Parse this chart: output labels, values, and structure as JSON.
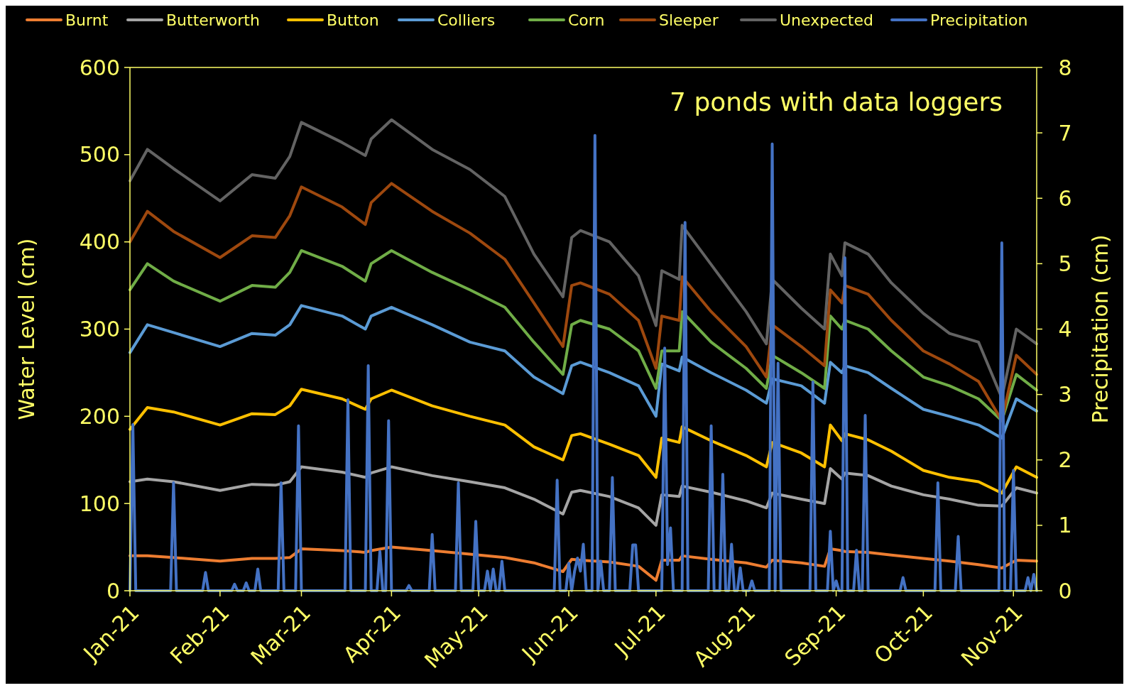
{
  "chart_data": {
    "type": "line",
    "ylabel": "Water Level (cm)",
    "y2label": "Precipitation (cm)",
    "annotations": [
      "7 ponds with data loggers"
    ],
    "legend": "top",
    "grid": false,
    "marker": "none",
    "line_style": "solid",
    "xlim": [
      "2021-01-01",
      "2021-11-09"
    ],
    "xticks": [
      {
        "value": "2021-01-01",
        "label": "Jan-21"
      },
      {
        "value": "2021-02-01",
        "label": "Feb-21"
      },
      {
        "value": "2021-03-01",
        "label": "Mar-21"
      },
      {
        "value": "2021-04-01",
        "label": "Apr-21"
      },
      {
        "value": "2021-05-01",
        "label": "May-21"
      },
      {
        "value": "2021-06-01",
        "label": "Jun-21"
      },
      {
        "value": "2021-07-01",
        "label": "Jul-21"
      },
      {
        "value": "2021-08-01",
        "label": "Aug-21"
      },
      {
        "value": "2021-09-01",
        "label": "Sep-21"
      },
      {
        "value": "2021-10-01",
        "label": "Oct-21"
      },
      {
        "value": "2021-11-01",
        "label": "Nov-21"
      }
    ],
    "ylim": [
      0,
      600
    ],
    "yticks": [
      0,
      100,
      200,
      300,
      400,
      500,
      600
    ],
    "y2lim": [
      0,
      8
    ],
    "y2ticks": [
      0,
      1,
      2,
      3,
      4,
      5,
      6,
      7,
      8
    ],
    "x": [
      "2021-01-01",
      "2021-01-07",
      "2021-01-16",
      "2021-02-01",
      "2021-02-12",
      "2021-02-20",
      "2021-02-25",
      "2021-03-01",
      "2021-03-15",
      "2021-03-23",
      "2021-03-25",
      "2021-04-01",
      "2021-04-15",
      "2021-04-28",
      "2021-05-10",
      "2021-05-20",
      "2021-05-30",
      "2021-06-02",
      "2021-06-05",
      "2021-06-15",
      "2021-06-25",
      "2021-07-01",
      "2021-07-03",
      "2021-07-09",
      "2021-07-10",
      "2021-07-20",
      "2021-08-01",
      "2021-08-08",
      "2021-08-10",
      "2021-08-20",
      "2021-08-28",
      "2021-08-30",
      "2021-09-03",
      "2021-09-04",
      "2021-09-12",
      "2021-09-20",
      "2021-10-01",
      "2021-10-10",
      "2021-10-20",
      "2021-10-28",
      "2021-11-02",
      "2021-11-09"
    ],
    "series": [
      {
        "name": "Burnt",
        "color": "#ed7d31",
        "values": [
          40,
          40,
          38,
          34,
          37,
          37,
          38,
          48,
          46,
          44,
          46,
          50,
          46,
          42,
          38,
          32,
          22,
          36,
          35,
          33,
          28,
          12,
          35,
          35,
          40,
          36,
          32,
          27,
          35,
          32,
          28,
          48,
          46,
          45,
          44,
          41,
          37,
          34,
          30,
          26,
          35,
          34
        ]
      },
      {
        "name": "Butterworth",
        "color": "#a5a5a5",
        "values": [
          125,
          128,
          125,
          115,
          122,
          121,
          125,
          142,
          136,
          130,
          135,
          142,
          132,
          125,
          118,
          105,
          88,
          113,
          115,
          108,
          95,
          75,
          110,
          108,
          120,
          113,
          103,
          95,
          112,
          105,
          100,
          140,
          128,
          135,
          132,
          120,
          110,
          105,
          98,
          97,
          118,
          112
        ]
      },
      {
        "name": "Button",
        "color": "#ffc000",
        "values": [
          185,
          210,
          205,
          190,
          203,
          202,
          212,
          231,
          220,
          208,
          220,
          230,
          212,
          200,
          190,
          165,
          150,
          178,
          180,
          168,
          155,
          130,
          175,
          170,
          188,
          172,
          155,
          142,
          170,
          158,
          142,
          190,
          172,
          180,
          173,
          160,
          138,
          130,
          125,
          112,
          142,
          130
        ]
      },
      {
        "name": "Colliers",
        "color": "#5b9bd5",
        "values": [
          273,
          305,
          296,
          280,
          295,
          293,
          305,
          327,
          315,
          300,
          315,
          325,
          305,
          285,
          275,
          245,
          226,
          258,
          262,
          250,
          235,
          200,
          260,
          252,
          268,
          250,
          230,
          215,
          243,
          235,
          215,
          262,
          250,
          258,
          250,
          232,
          208,
          200,
          190,
          175,
          220,
          206
        ]
      },
      {
        "name": "Corn",
        "color": "#70ad47",
        "values": [
          345,
          375,
          355,
          332,
          350,
          348,
          365,
          390,
          372,
          355,
          375,
          390,
          365,
          345,
          325,
          285,
          248,
          305,
          310,
          300,
          275,
          232,
          275,
          275,
          320,
          285,
          255,
          232,
          270,
          250,
          232,
          315,
          300,
          310,
          300,
          275,
          245,
          235,
          220,
          195,
          248,
          230
        ]
      },
      {
        "name": "Sleeper",
        "color": "#9e480e",
        "values": [
          400,
          435,
          412,
          382,
          407,
          405,
          430,
          463,
          440,
          420,
          445,
          467,
          435,
          410,
          380,
          330,
          280,
          350,
          353,
          340,
          310,
          255,
          315,
          310,
          360,
          320,
          280,
          245,
          305,
          280,
          258,
          345,
          330,
          350,
          340,
          310,
          275,
          260,
          240,
          195,
          270,
          248
        ]
      },
      {
        "name": "Unexpected",
        "color": "#636363",
        "values": [
          470,
          506,
          484,
          447,
          477,
          473,
          498,
          537,
          514,
          499,
          518,
          540,
          506,
          483,
          452,
          386,
          337,
          405,
          413,
          400,
          361,
          304,
          367,
          357,
          419,
          374,
          320,
          283,
          357,
          324,
          300,
          386,
          361,
          399,
          386,
          353,
          318,
          295,
          285,
          221,
          300,
          283
        ]
      },
      {
        "name": "Precipitation",
        "color": "#4472c4",
        "axis": "y2",
        "x": [
          "2021-01-01",
          "2021-01-02",
          "2021-01-03",
          "2021-01-15",
          "2021-01-16",
          "2021-01-17",
          "2021-01-26",
          "2021-01-27",
          "2021-01-28",
          "2021-02-05",
          "2021-02-06",
          "2021-02-07",
          "2021-02-09",
          "2021-02-10",
          "2021-02-11",
          "2021-02-13",
          "2021-02-14",
          "2021-02-15",
          "2021-02-21",
          "2021-02-22",
          "2021-02-23",
          "2021-02-27",
          "2021-02-28",
          "2021-03-01",
          "2021-03-16",
          "2021-03-17",
          "2021-03-18",
          "2021-03-23",
          "2021-03-24",
          "2021-03-25",
          "2021-03-27",
          "2021-03-28",
          "2021-03-29",
          "2021-03-30",
          "2021-03-31",
          "2021-04-01",
          "2021-04-06",
          "2021-04-07",
          "2021-04-08",
          "2021-04-14",
          "2021-04-15",
          "2021-04-16",
          "2021-04-23",
          "2021-04-24",
          "2021-04-25",
          "2021-04-29",
          "2021-04-30",
          "2021-05-01",
          "2021-05-03",
          "2021-05-04",
          "2021-05-05",
          "2021-05-06",
          "2021-05-07",
          "2021-05-08",
          "2021-05-09",
          "2021-05-10",
          "2021-05-27",
          "2021-05-28",
          "2021-05-29",
          "2021-05-31",
          "2021-06-01",
          "2021-06-02",
          "2021-06-03",
          "2021-06-04",
          "2021-06-05",
          "2021-06-06",
          "2021-06-07",
          "2021-06-09",
          "2021-06-10",
          "2021-06-11",
          "2021-06-12",
          "2021-06-13",
          "2021-06-15",
          "2021-06-16",
          "2021-06-17",
          "2021-06-22",
          "2021-06-23",
          "2021-06-24",
          "2021-06-25",
          "2021-07-03",
          "2021-07-04",
          "2021-07-05",
          "2021-07-06",
          "2021-07-07",
          "2021-07-10",
          "2021-07-11",
          "2021-07-12",
          "2021-07-19",
          "2021-07-20",
          "2021-07-21",
          "2021-07-23",
          "2021-07-24",
          "2021-07-25",
          "2021-07-26",
          "2021-07-27",
          "2021-07-28",
          "2021-07-29",
          "2021-07-30",
          "2021-07-31",
          "2021-08-02",
          "2021-08-03",
          "2021-08-04",
          "2021-08-09",
          "2021-08-10",
          "2021-08-11",
          "2021-08-12",
          "2021-08-13",
          "2021-08-23",
          "2021-08-24",
          "2021-08-25",
          "2021-08-29",
          "2021-08-30",
          "2021-08-31",
          "2021-09-01",
          "2021-09-02",
          "2021-09-03",
          "2021-09-04",
          "2021-09-05",
          "2021-09-07",
          "2021-09-08",
          "2021-09-09",
          "2021-09-10",
          "2021-09-11",
          "2021-09-12",
          "2021-09-23",
          "2021-09-24",
          "2021-09-25",
          "2021-10-05",
          "2021-10-06",
          "2021-10-07",
          "2021-10-12",
          "2021-10-13",
          "2021-10-14",
          "2021-10-27",
          "2021-10-28",
          "2021-10-29",
          "2021-10-31",
          "2021-11-01",
          "2021-11-02",
          "2021-11-05",
          "2021-11-06",
          "2021-11-07",
          "2021-11-08",
          "2021-11-09"
        ],
        "values": [
          0,
          2.54,
          0,
          0,
          1.65,
          0,
          0,
          0.28,
          0,
          0,
          0.1,
          0,
          0,
          0.12,
          0,
          0,
          0.33,
          0,
          0,
          1.65,
          0,
          0,
          2.52,
          0,
          0,
          2.92,
          0,
          0,
          3.44,
          0,
          0,
          0.6,
          0,
          0,
          2.6,
          0,
          0,
          0.08,
          0,
          0,
          0.86,
          0,
          0,
          1.65,
          0,
          0,
          1.06,
          0,
          0,
          0.3,
          0,
          0.33,
          0,
          0,
          0.45,
          0,
          0,
          1.69,
          0,
          0,
          0.42,
          0,
          0.3,
          0.5,
          0.3,
          0.71,
          0,
          0,
          6.96,
          0,
          0.45,
          0,
          0,
          1.73,
          0,
          0,
          0.7,
          0.7,
          0,
          0,
          3.71,
          0.4,
          0.96,
          0,
          0,
          5.63,
          0,
          0,
          2.52,
          0,
          0,
          1.78,
          0,
          0,
          0.71,
          0,
          0,
          0.35,
          0,
          0,
          0.15,
          0,
          0,
          6.83,
          0,
          3.48,
          0,
          0,
          3.19,
          0,
          0,
          0.91,
          0,
          0.15,
          0,
          0,
          5.09,
          0,
          0,
          0.62,
          0,
          0,
          2.68,
          0,
          0,
          0.2,
          0,
          0,
          1.65,
          0,
          0,
          0.83,
          0,
          0,
          5.32,
          0,
          0,
          1.84,
          0,
          0,
          0.2,
          0,
          0.25,
          0
        ]
      }
    ]
  }
}
